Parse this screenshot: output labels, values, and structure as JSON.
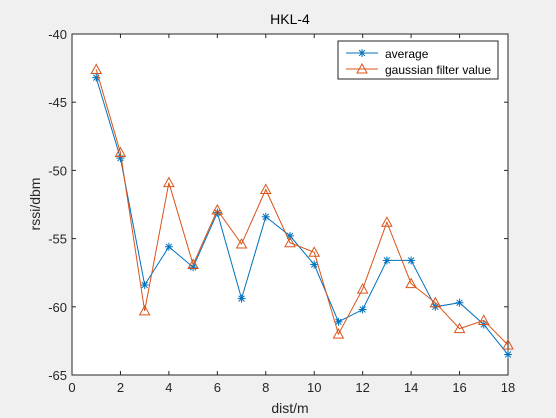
{
  "chart_data": {
    "type": "line",
    "title": "HKL-4",
    "xlabel": "dist/m",
    "ylabel": "rssi/dbm",
    "xlim": [
      0,
      18
    ],
    "ylim": [
      -65,
      -40
    ],
    "xticks": [
      0,
      2,
      4,
      6,
      8,
      10,
      12,
      14,
      16,
      18
    ],
    "yticks": [
      -40,
      -45,
      -50,
      -55,
      -60,
      -65
    ],
    "grid": false,
    "legend_position": "top-right",
    "x": [
      1,
      2,
      3,
      4,
      5,
      6,
      7,
      8,
      9,
      10,
      11,
      12,
      13,
      14,
      15,
      16,
      17,
      18
    ],
    "series": [
      {
        "name": "average",
        "marker": "asterisk",
        "color": "#0072BD",
        "values": [
          -43.2,
          -49.1,
          -58.4,
          -55.6,
          -57.1,
          -53.1,
          -59.4,
          -53.4,
          -54.8,
          -56.9,
          -61.1,
          -60.2,
          -56.6,
          -56.6,
          -60.0,
          -59.7,
          -61.3,
          -63.5
        ]
      },
      {
        "name": "gaussian filter value",
        "marker": "triangle",
        "color": "#D95319",
        "values": [
          -42.6,
          -48.7,
          -60.3,
          -50.9,
          -56.9,
          -52.9,
          -55.4,
          -51.4,
          -55.3,
          -56.0,
          -62.0,
          -58.7,
          -53.8,
          -58.3,
          -59.7,
          -61.6,
          -61.0,
          -62.8
        ]
      }
    ]
  }
}
